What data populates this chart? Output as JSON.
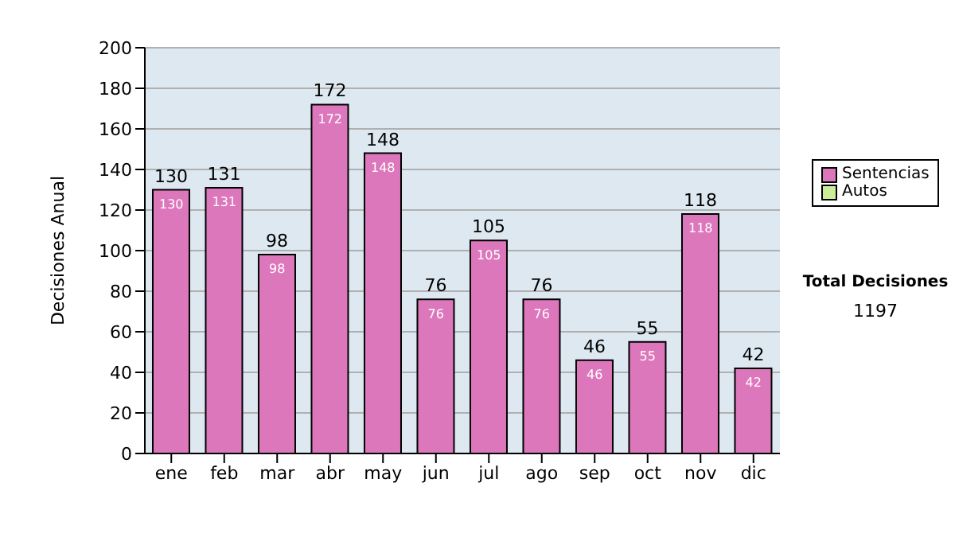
{
  "chart_data": {
    "type": "bar",
    "ylabel": "Decisiones Anual",
    "categories": [
      "ene",
      "feb",
      "mar",
      "abr",
      "may",
      "jun",
      "jul",
      "ago",
      "sep",
      "oct",
      "nov",
      "dic"
    ],
    "series": [
      {
        "name": "Sentencias",
        "color": "#dd77bb",
        "values": [
          130,
          131,
          98,
          172,
          148,
          76,
          105,
          76,
          46,
          55,
          118,
          42
        ]
      },
      {
        "name": "Autos",
        "color": "#ccee99",
        "values": [
          null,
          null,
          null,
          null,
          null,
          null,
          null,
          null,
          null,
          null,
          null,
          null
        ]
      }
    ],
    "stacked": true,
    "ylim": [
      0,
      200
    ],
    "yticks": [
      0,
      20,
      40,
      60,
      80,
      100,
      120,
      140,
      160,
      180,
      200
    ],
    "grid": "y",
    "legend": "right",
    "data_labels": true,
    "annotations": [
      "Total Decisiones",
      "1197",
      {
        "text": "130",
        "x": "ene",
        "y": 130
      },
      {
        "text": "131",
        "x": "feb",
        "y": 131
      },
      {
        "text": "98",
        "x": "mar",
        "y": 98
      },
      {
        "text": "172",
        "x": "abr",
        "y": 172
      },
      {
        "text": "148",
        "x": "may",
        "y": 148
      },
      {
        "text": "76",
        "x": "jun",
        "y": 76
      },
      {
        "text": "105",
        "x": "jul",
        "y": 105
      },
      {
        "text": "76",
        "x": "ago",
        "y": 76
      },
      {
        "text": "46",
        "x": "sep",
        "y": 46
      },
      {
        "text": "55",
        "x": "oct",
        "y": 55
      },
      {
        "text": "118",
        "x": "nov",
        "y": 118
      },
      {
        "text": "42",
        "x": "dic",
        "y": 42
      }
    ]
  }
}
